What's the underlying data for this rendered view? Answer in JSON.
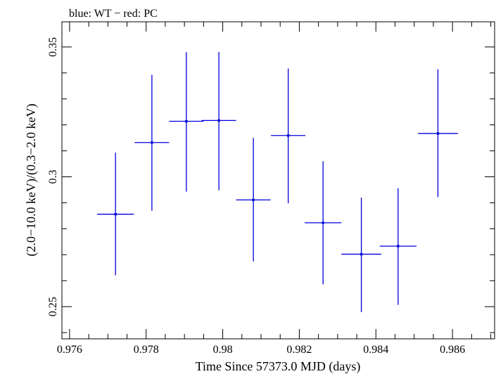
{
  "chart_data": {
    "type": "scatter",
    "title": "blue: WT − red: PC",
    "xlabel": "Time Since 57373.0 MJD (days)",
    "ylabel": "(2.0−10.0 keV)/(0.3−2.0 keV)",
    "xlim": [
      0.9758,
      0.9871
    ],
    "ylim": [
      0.2376,
      0.3597
    ],
    "x_ticks": [
      0.976,
      0.978,
      0.98,
      0.982,
      0.984,
      0.986
    ],
    "x_tick_labels": [
      "0.976",
      "0.978",
      "0.98",
      "0.982",
      "0.984",
      "0.986"
    ],
    "y_ticks": [
      0.25,
      0.3,
      0.35
    ],
    "y_tick_labels": [
      "0.25",
      "0.3",
      "0.35"
    ],
    "series": [
      {
        "name": "WT",
        "color": "#0000dd",
        "points": [
          {
            "x": 0.9772,
            "y": 0.2856,
            "xerr": 0.00048,
            "yerr_lo": 0.0235,
            "yerr_hi": 0.0237
          },
          {
            "x": 0.97815,
            "y": 0.3132,
            "xerr": 0.00045,
            "yerr_lo": 0.0263,
            "yerr_hi": 0.0261
          },
          {
            "x": 0.97905,
            "y": 0.3214,
            "xerr": 0.00045,
            "yerr_lo": 0.0271,
            "yerr_hi": 0.0266
          },
          {
            "x": 0.9799,
            "y": 0.3217,
            "xerr": 0.00045,
            "yerr_lo": 0.0269,
            "yerr_hi": 0.0264
          },
          {
            "x": 0.9808,
            "y": 0.2911,
            "xerr": 0.00045,
            "yerr_lo": 0.0237,
            "yerr_hi": 0.0239
          },
          {
            "x": 0.98171,
            "y": 0.3159,
            "xerr": 0.00045,
            "yerr_lo": 0.0261,
            "yerr_hi": 0.0258
          },
          {
            "x": 0.98262,
            "y": 0.2823,
            "xerr": 0.00048,
            "yerr_lo": 0.0237,
            "yerr_hi": 0.0237
          },
          {
            "x": 0.98362,
            "y": 0.2702,
            "xerr": 0.00052,
            "yerr_lo": 0.0223,
            "yerr_hi": 0.0218
          },
          {
            "x": 0.98458,
            "y": 0.2733,
            "xerr": 0.00048,
            "yerr_lo": 0.0226,
            "yerr_hi": 0.0223
          },
          {
            "x": 0.98562,
            "y": 0.3167,
            "xerr": 0.00052,
            "yerr_lo": 0.0245,
            "yerr_hi": 0.0247
          }
        ]
      }
    ]
  }
}
